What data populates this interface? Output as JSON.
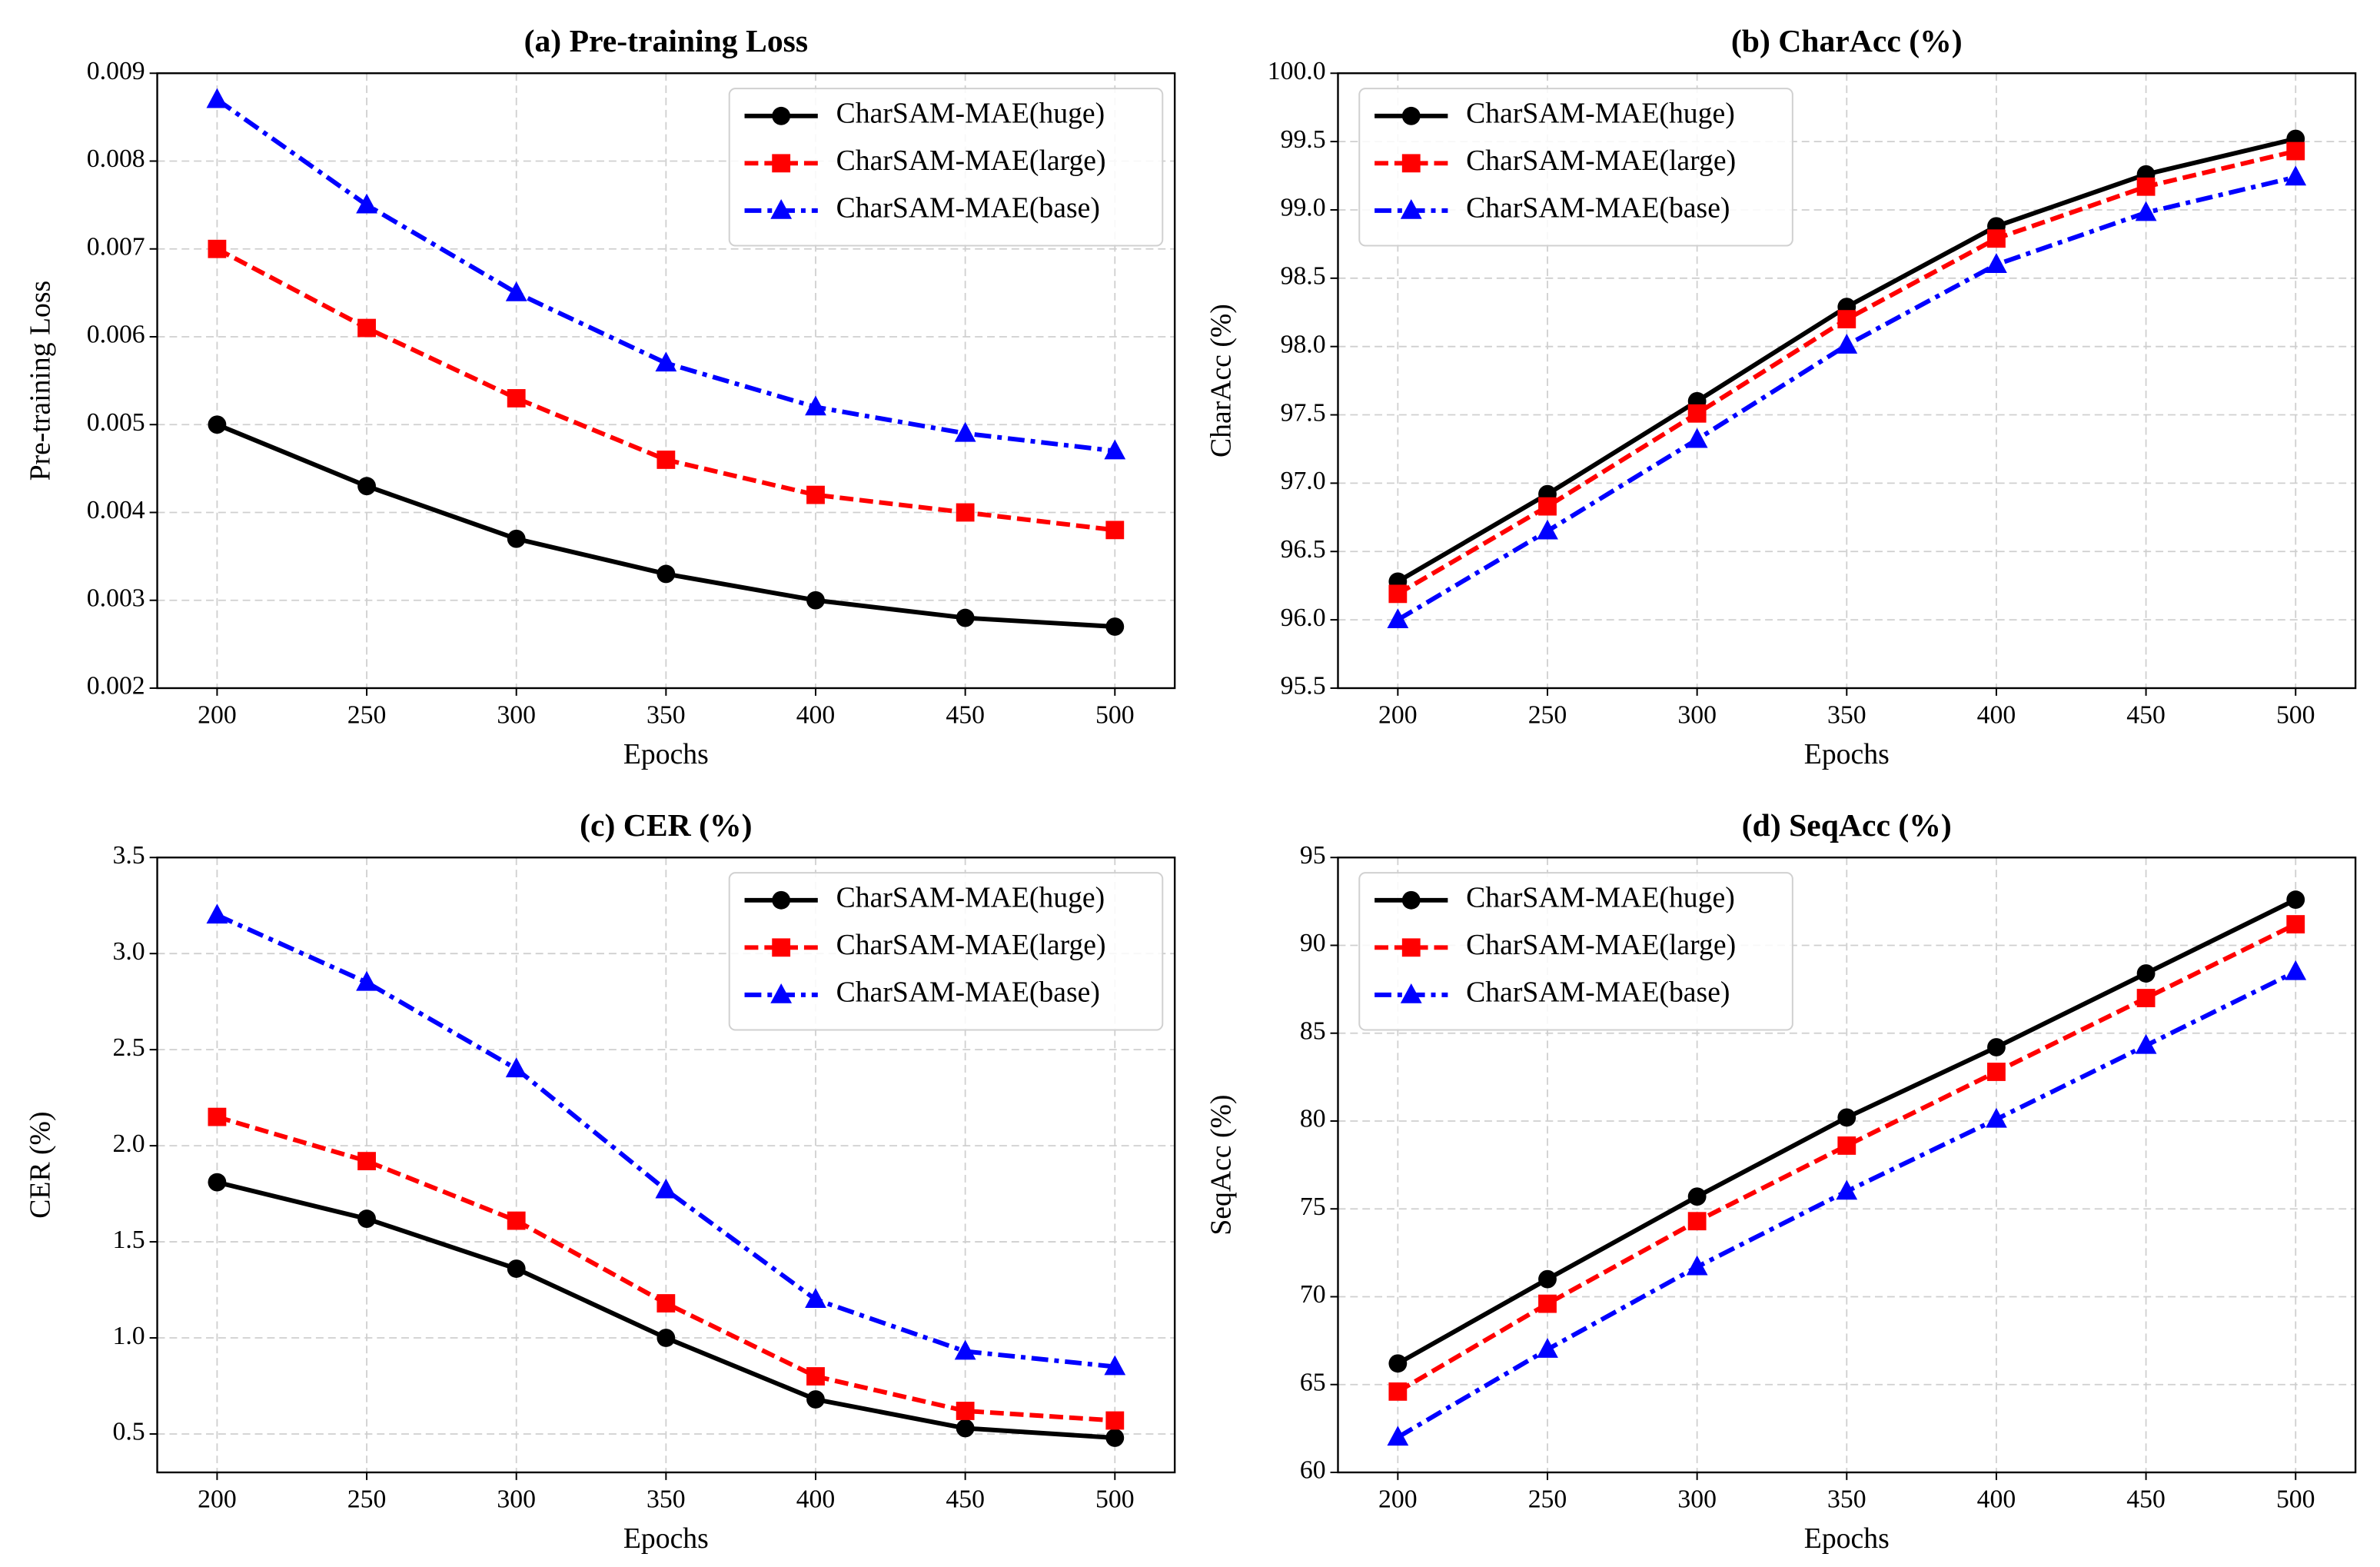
{
  "chart_data": [
    {
      "type": "line",
      "title": "(a) Pre-training Loss",
      "x_label": "Epochs",
      "y_label": "Pre-training Loss",
      "x": [
        200,
        250,
        300,
        350,
        400,
        450,
        500
      ],
      "xlim": [
        180,
        520
      ],
      "xticks": [
        200,
        250,
        300,
        350,
        400,
        450,
        500
      ],
      "ylim": [
        0.002,
        0.009
      ],
      "yticks": [
        0.002,
        0.003,
        0.004,
        0.005,
        0.006,
        0.007,
        0.008,
        0.009
      ],
      "grid": true,
      "legend": "upper right",
      "series": [
        {
          "name": "CharSAM-MAE(huge)",
          "color": "#000000",
          "linestyle": "solid",
          "marker": "circle",
          "values": [
            0.005,
            0.0043,
            0.0037,
            0.0033,
            0.003,
            0.0028,
            0.0027
          ]
        },
        {
          "name": "CharSAM-MAE(large)",
          "color": "#ff0000",
          "linestyle": "dashed",
          "marker": "square",
          "values": [
            0.007,
            0.0061,
            0.0053,
            0.0046,
            0.0042,
            0.004,
            0.0038
          ]
        },
        {
          "name": "CharSAM-MAE(base)",
          "color": "#0000ff",
          "linestyle": "dashdot",
          "marker": "triangle",
          "values": [
            0.0087,
            0.0075,
            0.0065,
            0.0057,
            0.0052,
            0.0049,
            0.0047
          ]
        }
      ]
    },
    {
      "type": "line",
      "title": "(b) CharAcc (%)",
      "x_label": "Epochs",
      "y_label": "CharAcc (%)",
      "x": [
        200,
        250,
        300,
        350,
        400,
        450,
        500
      ],
      "xlim": [
        180,
        520
      ],
      "xticks": [
        200,
        250,
        300,
        350,
        400,
        450,
        500
      ],
      "ylim": [
        95.5,
        100
      ],
      "yticks": [
        95.5,
        {
          "value": 96,
          "label": "96.0"
        },
        96.5,
        {
          "value": 97,
          "label": "97.0"
        },
        97.5,
        {
          "value": 98,
          "label": "98.0"
        },
        98.5,
        {
          "value": 99,
          "label": "99.0"
        },
        99.5,
        {
          "value": 100,
          "label": "100.0"
        }
      ],
      "grid": true,
      "legend": "upper left",
      "series": [
        {
          "name": "CharSAM-MAE(huge)",
          "color": "#000000",
          "linestyle": "solid",
          "marker": "circle",
          "values": [
            96.28,
            96.92,
            97.6,
            98.29,
            98.88,
            99.26,
            99.52
          ]
        },
        {
          "name": "CharSAM-MAE(large)",
          "color": "#ff0000",
          "linestyle": "dashed",
          "marker": "square",
          "values": [
            96.19,
            96.83,
            97.51,
            98.2,
            98.79,
            99.17,
            99.43
          ]
        },
        {
          "name": "CharSAM-MAE(base)",
          "color": "#0000ff",
          "linestyle": "dashdot",
          "marker": "triangle",
          "values": [
            96.0,
            96.65,
            97.32,
            98.01,
            98.6,
            98.98,
            99.24
          ]
        }
      ]
    },
    {
      "type": "line",
      "title": "(c) CER (%)",
      "x_label": "Epochs",
      "y_label": "CER (%)",
      "x": [
        200,
        250,
        300,
        350,
        400,
        450,
        500
      ],
      "xlim": [
        180,
        520
      ],
      "xticks": [
        200,
        250,
        300,
        350,
        400,
        450,
        500
      ],
      "ylim": [
        0.3,
        3.5
      ],
      "yticks": [
        0.5,
        {
          "value": 1,
          "label": "1.0"
        },
        1.5,
        {
          "value": 2,
          "label": "2.0"
        },
        2.5,
        {
          "value": 3,
          "label": "3.0"
        },
        3.5
      ],
      "grid": true,
      "legend": "upper right",
      "series": [
        {
          "name": "CharSAM-MAE(huge)",
          "color": "#000000",
          "linestyle": "solid",
          "marker": "circle",
          "values": [
            1.81,
            1.62,
            1.36,
            1.0,
            0.68,
            0.53,
            0.48
          ]
        },
        {
          "name": "CharSAM-MAE(large)",
          "color": "#ff0000",
          "linestyle": "dashed",
          "marker": "square",
          "values": [
            2.15,
            1.92,
            1.61,
            1.18,
            0.8,
            0.62,
            0.57
          ]
        },
        {
          "name": "CharSAM-MAE(base)",
          "color": "#0000ff",
          "linestyle": "dashdot",
          "marker": "triangle",
          "values": [
            3.2,
            2.85,
            2.4,
            1.77,
            1.2,
            0.93,
            0.85
          ]
        }
      ]
    },
    {
      "type": "line",
      "title": "(d) SeqAcc (%)",
      "x_label": "Epochs",
      "y_label": "SeqAcc (%)",
      "x": [
        200,
        250,
        300,
        350,
        400,
        450,
        500
      ],
      "xlim": [
        180,
        520
      ],
      "xticks": [
        200,
        250,
        300,
        350,
        400,
        450,
        500
      ],
      "ylim": [
        60,
        95
      ],
      "yticks": [
        60,
        65,
        70,
        75,
        80,
        85,
        90,
        95
      ],
      "grid": true,
      "legend": "upper left",
      "series": [
        {
          "name": "CharSAM-MAE(huge)",
          "color": "#000000",
          "linestyle": "solid",
          "marker": "circle",
          "values": [
            66.2,
            71.0,
            75.7,
            80.2,
            84.2,
            88.4,
            92.6
          ]
        },
        {
          "name": "CharSAM-MAE(large)",
          "color": "#ff0000",
          "linestyle": "dashed",
          "marker": "square",
          "values": [
            64.6,
            69.6,
            74.3,
            78.6,
            82.8,
            87.0,
            91.2
          ]
        },
        {
          "name": "CharSAM-MAE(base)",
          "color": "#0000ff",
          "linestyle": "dashdot",
          "marker": "triangle",
          "values": [
            62.0,
            67.0,
            71.7,
            76.0,
            80.1,
            84.3,
            88.5
          ]
        }
      ]
    }
  ]
}
